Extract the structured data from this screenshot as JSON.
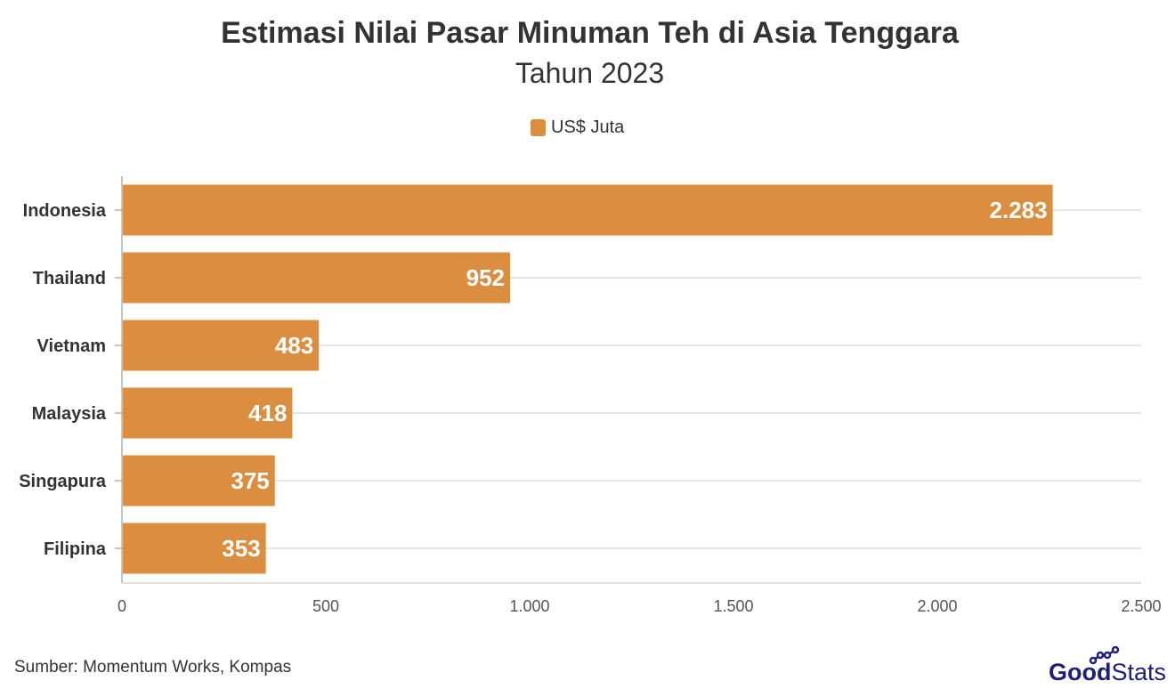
{
  "title": "Estimasi Nilai Pasar Minuman Teh di Asia Tenggara",
  "subtitle": "Tahun 2023",
  "source": "Sumber: Momentum Works, Kompas",
  "logo": {
    "text_bold": "Good",
    "text_light": "Stats"
  },
  "colors": {
    "bar": "#DB8D40",
    "logo": "#1F1F7A"
  },
  "chart_data": {
    "type": "bar",
    "orientation": "horizontal",
    "categories": [
      "Indonesia",
      "Thailand",
      "Vietnam",
      "Malaysia",
      "Singapura",
      "Filipina"
    ],
    "series": [
      {
        "name": "US$ Juta",
        "values": [
          2283,
          952,
          483,
          418,
          375,
          353
        ]
      }
    ],
    "data_labels": [
      "2.283",
      "952",
      "483",
      "418",
      "375",
      "353"
    ],
    "xlim": [
      0,
      2500
    ],
    "xticks": [
      0,
      500,
      1000,
      1500,
      2000,
      2500
    ],
    "xtick_labels": [
      "0",
      "500",
      "1.000",
      "1.500",
      "2.000",
      "2.500"
    ],
    "grid": true,
    "legend": "top-center"
  }
}
